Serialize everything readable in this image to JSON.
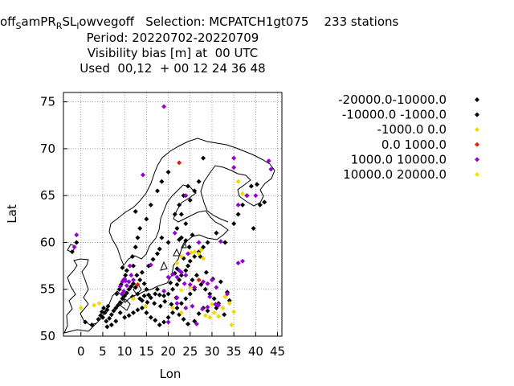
{
  "title": {
    "line1_prefix": "off",
    "line1_sub1": "S",
    "line1_mid1": "amPR",
    "line1_sub2": "R",
    "line1_mid2": "SL",
    "line1_sub3": "l",
    "line1_rest": "owvegoff   Selection: MCPATCH1gt075    233 stations",
    "line2": "Period: 20220702-20220709",
    "line3": "Visibility bias [m] at  00 UTC",
    "line4": "Used  00,12  + 00 12 24 36 48"
  },
  "chart_data": {
    "type": "scatter",
    "xlabel": "Lon",
    "ylabel": "Lat",
    "xlim": [
      -4,
      46
    ],
    "ylim": [
      50,
      76
    ],
    "xticks": [
      0,
      5,
      10,
      15,
      20,
      25,
      30,
      35,
      40,
      45
    ],
    "yticks": [
      50,
      55,
      60,
      65,
      70,
      75
    ],
    "grid": true,
    "legend_placement": "top-right",
    "series": [
      {
        "name": "-20000.0-10000.0",
        "color": "#000000",
        "points": []
      },
      {
        "name": "-10000.0 -1000.0",
        "color": "#000000",
        "points": [
          [
            -2,
            59
          ],
          [
            -1,
            60
          ],
          [
            1,
            51.5
          ],
          [
            2.5,
            51.2
          ],
          [
            4,
            51.8
          ],
          [
            4.5,
            52.2
          ],
          [
            5,
            52
          ],
          [
            5.5,
            52.5
          ],
          [
            6,
            52.8
          ],
          [
            6.2,
            53.2
          ],
          [
            4.8,
            52.6
          ],
          [
            5.2,
            53
          ],
          [
            5.8,
            51.6
          ],
          [
            6.5,
            51.9
          ],
          [
            7,
            52.3
          ],
          [
            7.5,
            52.7
          ],
          [
            8,
            53
          ],
          [
            8.5,
            53.3
          ],
          [
            9,
            53.6
          ],
          [
            9.5,
            54
          ],
          [
            10,
            54.3
          ],
          [
            10.5,
            54.6
          ],
          [
            11,
            55
          ],
          [
            11.5,
            55.3
          ],
          [
            12,
            55.6
          ],
          [
            8.2,
            54.5
          ],
          [
            8.8,
            55
          ],
          [
            9.2,
            55.5
          ],
          [
            9.8,
            56
          ],
          [
            10.2,
            56.5
          ],
          [
            10.5,
            57
          ],
          [
            9.5,
            57.3
          ],
          [
            12.5,
            55.2
          ],
          [
            11.8,
            54.2
          ],
          [
            13,
            54.5
          ],
          [
            13.5,
            54
          ],
          [
            14,
            53.8
          ],
          [
            14.5,
            54.3
          ],
          [
            15,
            55
          ],
          [
            15.5,
            54.4
          ],
          [
            16,
            54.1
          ],
          [
            17,
            54.5
          ],
          [
            18,
            54.4
          ],
          [
            19,
            54.3
          ],
          [
            20,
            54.5
          ],
          [
            21,
            55
          ],
          [
            22,
            55.5
          ],
          [
            22.5,
            56
          ],
          [
            23,
            56.5
          ],
          [
            24,
            57
          ],
          [
            24.5,
            57.5
          ],
          [
            25,
            58
          ],
          [
            26,
            58.5
          ],
          [
            27,
            59
          ],
          [
            28,
            59.5
          ],
          [
            29,
            60
          ],
          [
            24.8,
            59.5
          ],
          [
            23.5,
            58.3
          ],
          [
            22,
            57.2
          ],
          [
            21.5,
            56.7
          ],
          [
            20.5,
            55.7
          ],
          [
            25.5,
            56
          ],
          [
            26.5,
            56.5
          ],
          [
            27.5,
            55.5
          ],
          [
            28.5,
            55
          ],
          [
            29.5,
            54.5
          ],
          [
            30.5,
            54
          ],
          [
            31.5,
            53.5
          ],
          [
            32,
            55.8
          ],
          [
            26,
            55
          ],
          [
            25,
            54.5
          ],
          [
            24,
            54
          ],
          [
            23,
            53.5
          ],
          [
            22,
            53
          ],
          [
            21,
            52.5
          ],
          [
            20,
            52
          ],
          [
            19,
            51.5
          ],
          [
            18,
            51.2
          ],
          [
            17,
            51.7
          ],
          [
            16,
            52
          ],
          [
            15,
            52.5
          ],
          [
            14,
            53
          ],
          [
            13,
            52.8
          ],
          [
            12,
            52.5
          ],
          [
            11,
            52.2
          ],
          [
            10,
            52
          ],
          [
            9,
            52.5
          ],
          [
            8,
            51.6
          ],
          [
            7,
            51.2
          ],
          [
            6,
            51
          ],
          [
            22.5,
            52.3
          ],
          [
            23.5,
            51.8
          ],
          [
            24.5,
            51.3
          ],
          [
            26,
            51.6
          ],
          [
            27,
            52.4
          ],
          [
            28,
            53
          ],
          [
            29,
            52.7
          ],
          [
            24,
            62
          ],
          [
            23,
            63
          ],
          [
            22.5,
            64
          ],
          [
            23.5,
            65
          ],
          [
            25,
            64.5
          ],
          [
            26,
            65.5
          ],
          [
            27,
            66.5
          ],
          [
            24.5,
            66
          ],
          [
            21.5,
            63
          ],
          [
            22,
            61.5
          ],
          [
            23,
            60.5
          ],
          [
            25.5,
            60.8
          ],
          [
            24,
            60.2
          ],
          [
            22.5,
            60.3
          ],
          [
            20,
            60
          ],
          [
            18.5,
            60.5
          ],
          [
            18,
            59.3
          ],
          [
            17.5,
            58.8
          ],
          [
            16.5,
            58.2
          ],
          [
            15.5,
            57.5
          ],
          [
            14,
            56.8
          ],
          [
            13.5,
            56
          ],
          [
            14.5,
            55.6
          ],
          [
            12.8,
            56.5
          ],
          [
            12,
            57.5
          ],
          [
            11.8,
            58.5
          ],
          [
            12.5,
            59.5
          ],
          [
            13,
            60.5
          ],
          [
            13.5,
            61.5
          ],
          [
            15,
            62.5
          ],
          [
            16,
            64
          ],
          [
            17.5,
            65.5
          ],
          [
            18.5,
            66.5
          ],
          [
            20,
            67.5
          ],
          [
            28,
            69
          ],
          [
            31,
            61
          ],
          [
            33,
            60
          ],
          [
            35,
            62
          ],
          [
            36,
            63
          ],
          [
            37,
            64
          ],
          [
            38,
            65
          ],
          [
            39,
            66
          ],
          [
            39.5,
            61.5
          ],
          [
            41,
            64
          ],
          [
            42,
            64.3
          ],
          [
            40.3,
            66.2
          ],
          [
            12.5,
            63.3
          ],
          [
            27.3,
            58.5
          ],
          [
            28.7,
            56.8
          ],
          [
            30.2,
            56.1
          ],
          [
            33.5,
            54.7
          ],
          [
            31,
            53
          ],
          [
            32.8,
            52.3
          ],
          [
            34,
            53.8
          ],
          [
            19.2,
            53.7
          ],
          [
            18.2,
            53.2
          ],
          [
            20.7,
            53.4
          ],
          [
            21.8,
            54.1
          ],
          [
            17.5,
            55
          ],
          [
            16.8,
            53.5
          ],
          [
            15.2,
            53.6
          ]
        ]
      },
      {
        "name": "-1000.0 0.0",
        "color": "#f0d800",
        "points": [
          [
            0,
            53
          ],
          [
            3,
            53.3
          ],
          [
            4.2,
            53.5
          ],
          [
            12,
            54
          ],
          [
            14.8,
            53.2
          ],
          [
            21,
            53
          ],
          [
            23,
            52.5
          ],
          [
            25,
            55.2
          ],
          [
            26,
            59
          ],
          [
            27,
            58.8
          ],
          [
            28,
            58.3
          ],
          [
            28.5,
            52.2
          ],
          [
            29.5,
            52
          ],
          [
            30.5,
            52.5
          ],
          [
            31.5,
            52.1
          ],
          [
            32.5,
            53
          ],
          [
            33,
            54.2
          ],
          [
            34,
            53.5
          ],
          [
            34.5,
            51.2
          ],
          [
            35,
            52.6
          ],
          [
            30,
            53.4
          ],
          [
            22,
            57.8
          ],
          [
            23,
            58.5
          ],
          [
            27.5,
            59.2
          ],
          [
            36,
            66.5
          ],
          [
            37,
            65.2
          ],
          [
            25.2,
            58.9
          ]
        ]
      },
      {
        "name": "0.0 1000.0",
        "color": "#e02000",
        "points": [
          [
            13,
            55.5
          ],
          [
            22.5,
            68.5
          ],
          [
            27,
            56
          ]
        ]
      },
      {
        "name": "1000.0 10000.0",
        "color": "#9400d3",
        "points": [
          [
            -1,
            60.8
          ],
          [
            -1.5,
            59.5
          ],
          [
            19,
            74.5
          ],
          [
            35,
            69
          ],
          [
            35,
            68
          ],
          [
            36,
            64
          ],
          [
            38,
            65
          ],
          [
            40,
            65
          ],
          [
            43,
            68.7
          ],
          [
            43.5,
            67.8
          ],
          [
            14.2,
            67.2
          ],
          [
            24,
            65
          ],
          [
            21.5,
            61
          ],
          [
            9,
            55.3
          ],
          [
            9.5,
            55.8
          ],
          [
            10,
            56.1
          ],
          [
            10.5,
            55.4
          ],
          [
            11,
            55.8
          ],
          [
            9.8,
            54.8
          ],
          [
            10.2,
            55.9
          ],
          [
            9.4,
            54.5
          ],
          [
            11.5,
            56.5
          ],
          [
            12,
            56
          ],
          [
            11.2,
            57.5
          ],
          [
            16,
            57.6
          ],
          [
            20,
            56.3
          ],
          [
            21,
            56.6
          ],
          [
            22,
            56.3
          ],
          [
            23,
            56.8
          ],
          [
            24,
            56.5
          ],
          [
            25,
            55.5
          ],
          [
            26,
            55.2
          ],
          [
            28,
            55.8
          ],
          [
            29,
            55.6
          ],
          [
            30,
            56
          ],
          [
            31,
            55.2
          ],
          [
            29.5,
            54.2
          ],
          [
            31.5,
            53.3
          ],
          [
            30.8,
            53.4
          ],
          [
            19,
            54.8
          ],
          [
            20,
            51.5
          ],
          [
            22,
            53.5
          ],
          [
            24,
            53
          ],
          [
            25.5,
            53.2
          ],
          [
            26.5,
            51.3
          ],
          [
            27.8,
            52.9
          ],
          [
            29,
            53.1
          ],
          [
            22.5,
            57
          ],
          [
            24.5,
            58.8
          ],
          [
            27,
            60
          ],
          [
            32,
            60.1
          ],
          [
            36,
            57.8
          ],
          [
            37,
            58
          ],
          [
            33.5,
            54.5
          ],
          [
            22,
            54.1
          ],
          [
            23.7,
            55.6
          ]
        ]
      },
      {
        "name": "10000.0 20000.0",
        "color": "#f0e600",
        "points": [
          [
            23,
            54.9
          ]
        ]
      }
    ]
  }
}
